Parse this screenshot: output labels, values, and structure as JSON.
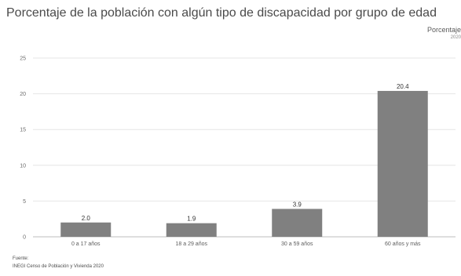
{
  "chart_data": {
    "type": "bar",
    "title": "Porcentaje de la población con algún tipo de discapacidad por grupo de edad",
    "legend": {
      "label": "Porcentaje",
      "year": "2020",
      "placement": "top-right"
    },
    "categories": [
      "0 a 17 años",
      "18 a 29 años",
      "30 a 59 años",
      "60 años y más"
    ],
    "series": [
      {
        "name": "Porcentaje",
        "values": [
          2.0,
          1.9,
          3.9,
          20.4
        ],
        "labels": [
          "2.0",
          "1.9",
          "3.9",
          "20.4"
        ],
        "color": "#808080"
      }
    ],
    "ylim": [
      0,
      25
    ],
    "yticks": [
      0,
      5,
      10,
      15,
      20,
      25
    ],
    "ytick_labels": [
      "0",
      "5",
      "10",
      "15",
      "20",
      "25"
    ],
    "grid": true
  },
  "source": {
    "heading": "Fuente:",
    "text": "INEGI Censo de Población y Vivienda 2020"
  }
}
